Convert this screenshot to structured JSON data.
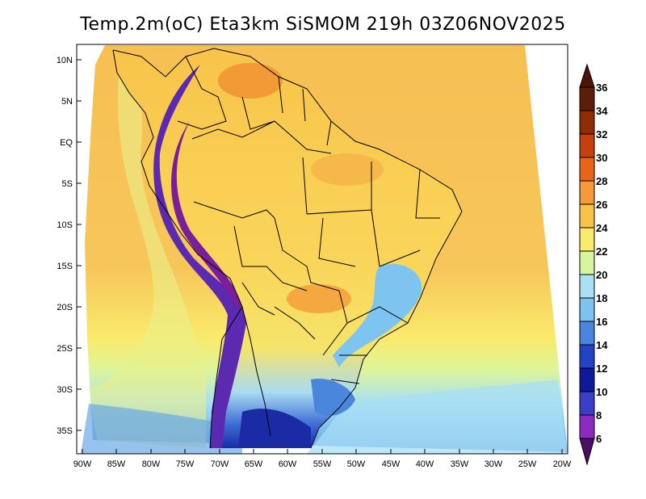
{
  "title": "Temp.2m(oC) Eta3km SiSMOM 219h 03Z06NOV2025",
  "map": {
    "lat_labels": [
      "10N",
      "5N",
      "EQ",
      "5S",
      "10S",
      "15S",
      "20S",
      "25S",
      "30S",
      "35S"
    ],
    "lon_labels": [
      "90W",
      "85W",
      "80W",
      "75W",
      "70W",
      "65W",
      "60W",
      "55W",
      "50W",
      "45W",
      "40W",
      "35W",
      "30W",
      "25W",
      "20W"
    ]
  },
  "colorbar": {
    "levels": [
      "36",
      "34",
      "32",
      "30",
      "28",
      "26",
      "24",
      "22",
      "20",
      "18",
      "16",
      "14",
      "12",
      "10",
      "8",
      "6"
    ],
    "colors": [
      "#5c1e0a",
      "#8c2d06",
      "#c2410c",
      "#e8641a",
      "#f49a3a",
      "#f8c34a",
      "#faeb6e",
      "#d8f59e",
      "#a9e0f4",
      "#7ec2f0",
      "#4a86dc",
      "#2442c4",
      "#0f1a9a",
      "#3b3fc8",
      "#8a2cc2",
      "#5a1478"
    ],
    "top_cap_color": "#4a1508",
    "bottom_cap_color": "#4b0f66"
  }
}
